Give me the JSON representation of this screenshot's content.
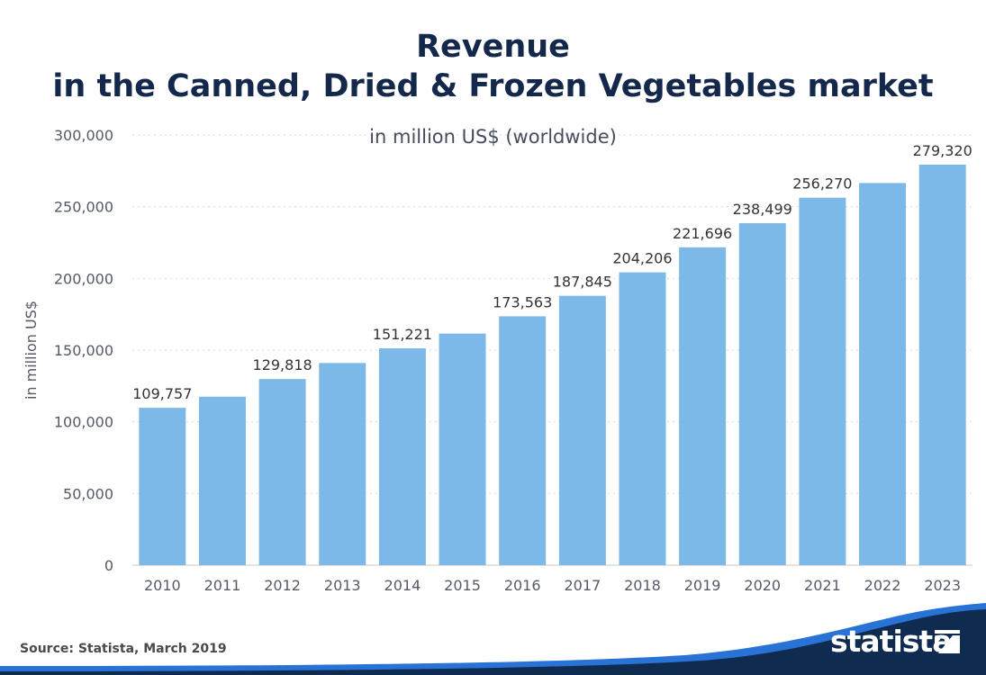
{
  "header": {
    "title_line1": "Revenue",
    "title_line2": "in the Canned, Dried & Frozen Vegetables market",
    "subtitle": "in million US$ (worldwide)"
  },
  "footer": {
    "source": "Source: Statista, March 2019",
    "brand": "statista"
  },
  "colors": {
    "bar": "#7cb9e8",
    "title": "#14284b",
    "brand_dark": "#0f2b4f",
    "brand_accent": "#2a73d6"
  },
  "chart_data": {
    "type": "bar",
    "title": "Revenue in the Canned, Dried & Frozen Vegetables market",
    "subtitle": "in million US$ (worldwide)",
    "xlabel": "",
    "ylabel": "in million US$",
    "ylim": [
      0,
      300000
    ],
    "yticks": [
      0,
      50000,
      100000,
      150000,
      200000,
      250000,
      300000
    ],
    "ytick_labels": [
      "0",
      "50,000",
      "100,000",
      "150,000",
      "200,000",
      "250,000",
      "300,000"
    ],
    "grid": true,
    "categories": [
      "2010",
      "2011",
      "2012",
      "2013",
      "2014",
      "2015",
      "2016",
      "2017",
      "2018",
      "2019",
      "2020",
      "2021",
      "2022",
      "2023"
    ],
    "values": [
      109757,
      117500,
      129818,
      141000,
      151221,
      161500,
      173563,
      187845,
      204206,
      221696,
      238499,
      256270,
      266500,
      279320
    ],
    "data_labels": [
      "109,757",
      "",
      "129,818",
      "",
      "151,221",
      "",
      "173,563",
      "187,845",
      "204,206",
      "221,696",
      "238,499",
      "256,270",
      "",
      "279,320"
    ]
  }
}
